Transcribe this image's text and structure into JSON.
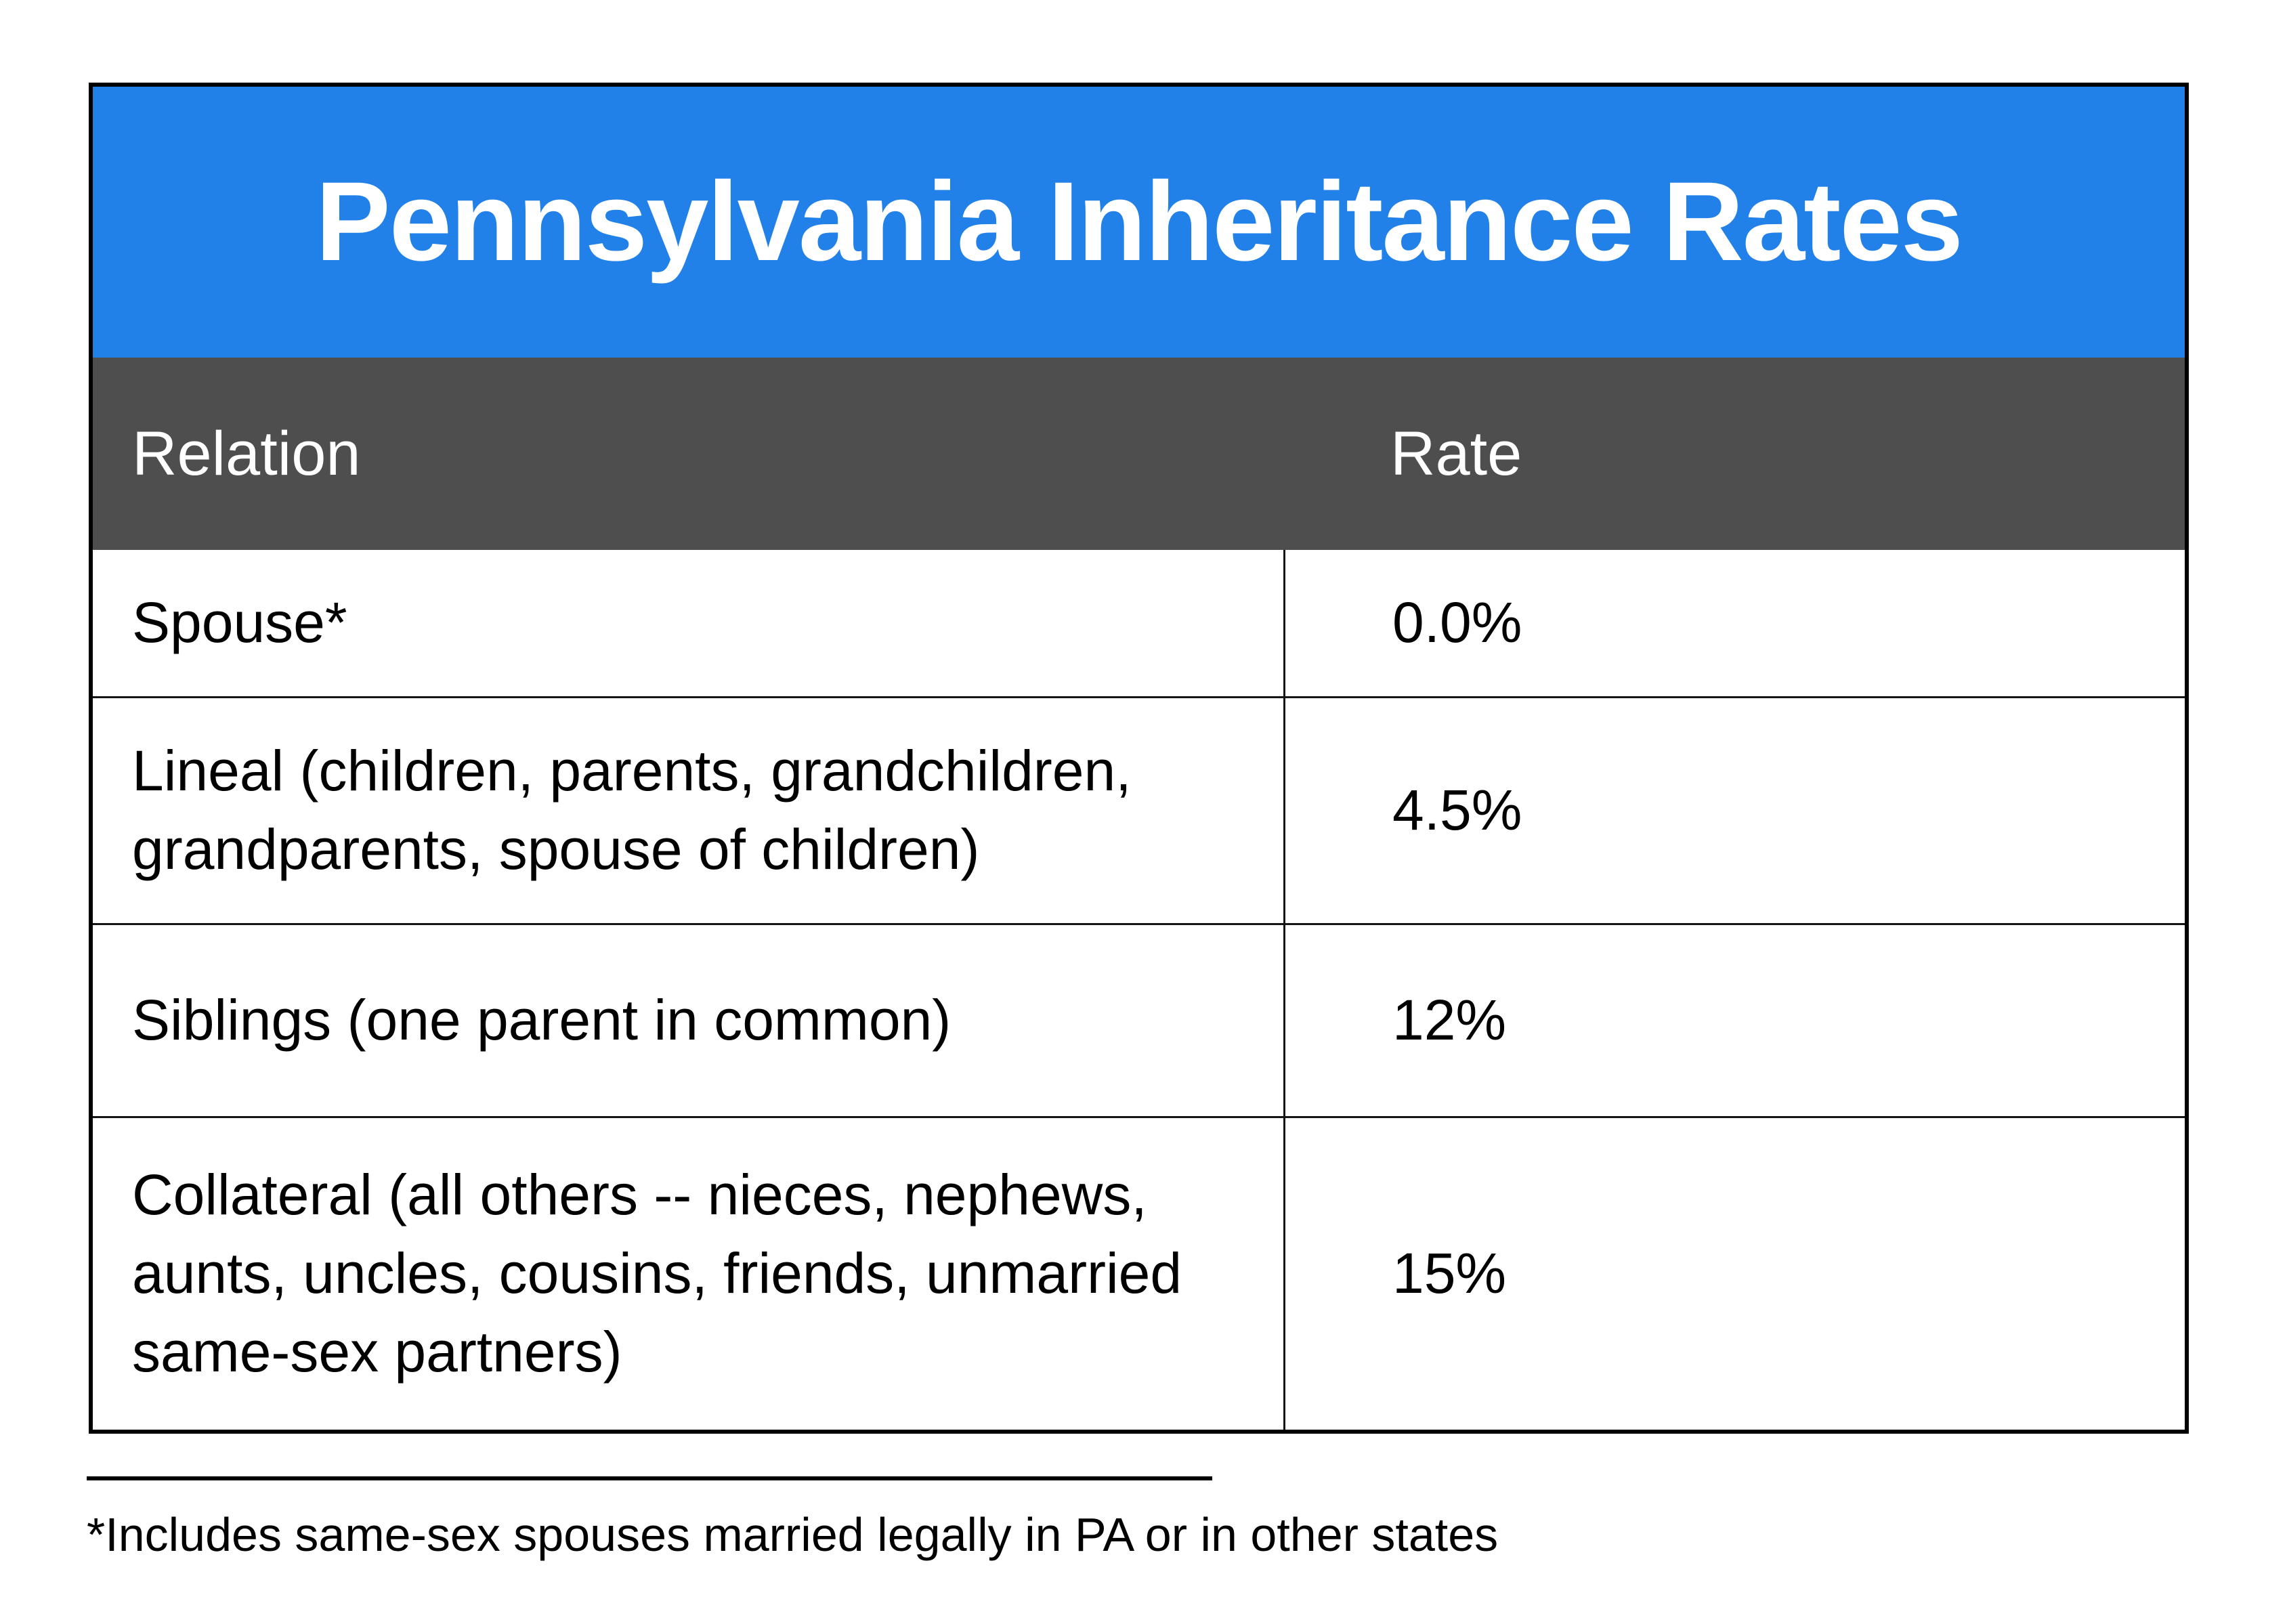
{
  "table": {
    "title": "Pennsylvania Inheritance Rates",
    "columns": [
      {
        "label": "Relation"
      },
      {
        "label": "Rate"
      }
    ],
    "rows": [
      {
        "relation": "Spouse*",
        "rate": "0.0%"
      },
      {
        "relation": "Lineal (children, parents, grandchildren,\ngrandparents, spouse of children)",
        "rate": "4.5%"
      },
      {
        "relation": "Siblings (one parent in common)",
        "rate": "12%"
      },
      {
        "relation": "Collateral (all others -- nieces, nephews,\naunts, uncles, cousins, friends, unmarried\nsame-sex partners)",
        "rate": "15%"
      }
    ]
  },
  "footnote": "*Includes same-sex spouses married legally in PA or in other states",
  "colors": {
    "header_blue": "#2181E8",
    "header_gray": "#4E4E4E"
  },
  "chart_data": {
    "type": "table",
    "title": "Pennsylvania Inheritance Rates",
    "columns": [
      "Relation",
      "Rate"
    ],
    "rows": [
      [
        "Spouse*",
        "0.0%"
      ],
      [
        "Lineal (children, parents, grandchildren, grandparents, spouse of children)",
        "4.5%"
      ],
      [
        "Siblings (one parent in common)",
        "12%"
      ],
      [
        "Collateral (all others -- nieces, nephews, aunts, uncles, cousins, friends, unmarried same-sex partners)",
        "15%"
      ]
    ],
    "values_numeric_percent": [
      0.0,
      4.5,
      12,
      15
    ],
    "footnote": "*Includes same-sex spouses married legally in PA or in other states"
  }
}
